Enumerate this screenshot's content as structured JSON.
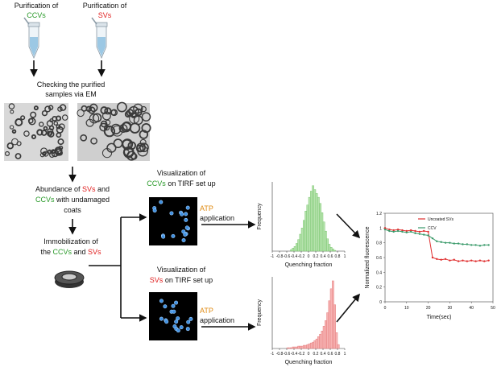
{
  "workflow": {
    "purify_ccv": [
      "Purification of",
      "CCVs"
    ],
    "purify_sv": [
      "Purification of",
      "SVs"
    ],
    "check": [
      "Checking the purified",
      "samples via EM"
    ],
    "abundance": [
      [
        "Abundance of ",
        "SVs",
        " and"
      ],
      [
        "CCVs",
        " with undamaged"
      ],
      [
        "coats"
      ]
    ],
    "immobilization": [
      [
        "Immobilization of"
      ],
      [
        "the ",
        "CCVs",
        " and ",
        "SVs"
      ]
    ],
    "vis_ccv": [
      [
        "Visualization of"
      ],
      [
        "CCVs",
        " on TIRF set up"
      ]
    ],
    "vis_sv": [
      [
        "Visualization of"
      ],
      [
        "SVs",
        " on TIRF set up"
      ]
    ],
    "atp_ccv": [
      "ATP",
      "application"
    ],
    "atp_sv": [
      "ATP",
      "application"
    ]
  },
  "histograms": [
    {
      "color": "#b6e3ad",
      "edge": "#6cbf60",
      "ylabel": "Frequency",
      "xlabel": "Quenching fraction",
      "xlim": [
        -1,
        1
      ],
      "xticks": [
        -1,
        -0.8,
        -0.6,
        -0.4,
        -0.2,
        0,
        0.2,
        0.4,
        0.6,
        0.8,
        1
      ],
      "ylim": [
        0,
        90
      ],
      "bins": [
        -0.5,
        -0.45,
        -0.4,
        -0.35,
        -0.3,
        -0.25,
        -0.2,
        -0.15,
        -0.1,
        -0.05,
        0,
        0.05,
        0.1,
        0.15,
        0.2,
        0.25,
        0.3,
        0.35,
        0.4,
        0.45,
        0.5,
        0.55,
        0.6,
        0.65,
        0.7,
        0.75
      ],
      "counts": [
        2,
        4,
        6,
        10,
        15,
        22,
        30,
        40,
        52,
        60,
        70,
        78,
        85,
        80,
        75,
        70,
        62,
        50,
        38,
        26,
        16,
        9,
        5,
        3,
        1
      ]
    },
    {
      "color": "#f7b3b3",
      "edge": "#e07070",
      "ylabel": "Frequency",
      "xlabel": "Quenching fraction",
      "xlim": [
        -1,
        1
      ],
      "xticks": [
        -1,
        -0.8,
        -0.6,
        -0.4,
        -0.2,
        0,
        0.2,
        0.4,
        0.6,
        0.8,
        1
      ],
      "ylim": [
        0,
        90
      ],
      "bins": [
        -0.6,
        -0.55,
        -0.5,
        -0.45,
        -0.4,
        -0.35,
        -0.3,
        -0.25,
        -0.2,
        -0.15,
        -0.1,
        -0.05,
        0,
        0.05,
        0.1,
        0.15,
        0.2,
        0.25,
        0.3,
        0.35,
        0.4,
        0.45,
        0.5,
        0.55,
        0.6,
        0.65,
        0.7,
        0.75,
        0.8,
        0.85
      ],
      "counts": [
        1,
        1,
        1,
        2,
        2,
        2,
        3,
        3,
        3,
        4,
        4,
        5,
        6,
        7,
        8,
        10,
        12,
        15,
        18,
        22,
        28,
        35,
        45,
        60,
        75,
        85,
        55,
        20,
        5
      ]
    }
  ],
  "timecourse": {
    "ylabel": "Normalized fluorescence",
    "xlabel": "Time(sec)",
    "xlim": [
      0,
      50
    ],
    "xticks": [
      0,
      10,
      20,
      30,
      40,
      50
    ],
    "ylim": [
      0,
      1.2
    ],
    "yticks": [
      0,
      0.2,
      0.4,
      0.6,
      0.8,
      1,
      1.2
    ],
    "x": [
      0,
      2,
      4,
      6,
      8,
      10,
      12,
      14,
      16,
      18,
      20,
      22,
      24,
      26,
      28,
      30,
      32,
      34,
      36,
      38,
      40,
      42,
      44,
      46,
      48
    ],
    "series": [
      {
        "name": "Uncoated SVs",
        "color": "#e03030",
        "values": [
          1.0,
          0.98,
          0.97,
          0.98,
          0.97,
          0.96,
          0.97,
          0.96,
          0.95,
          0.96,
          0.95,
          0.6,
          0.58,
          0.57,
          0.58,
          0.56,
          0.57,
          0.55,
          0.56,
          0.55,
          0.56,
          0.55,
          0.56,
          0.55,
          0.56
        ]
      },
      {
        "name": "CCV",
        "color": "#3a9a6a",
        "values": [
          0.98,
          0.96,
          0.95,
          0.96,
          0.95,
          0.94,
          0.95,
          0.93,
          0.92,
          0.91,
          0.9,
          0.86,
          0.82,
          0.81,
          0.8,
          0.8,
          0.79,
          0.79,
          0.78,
          0.78,
          0.77,
          0.77,
          0.76,
          0.77,
          0.77
        ]
      }
    ]
  }
}
